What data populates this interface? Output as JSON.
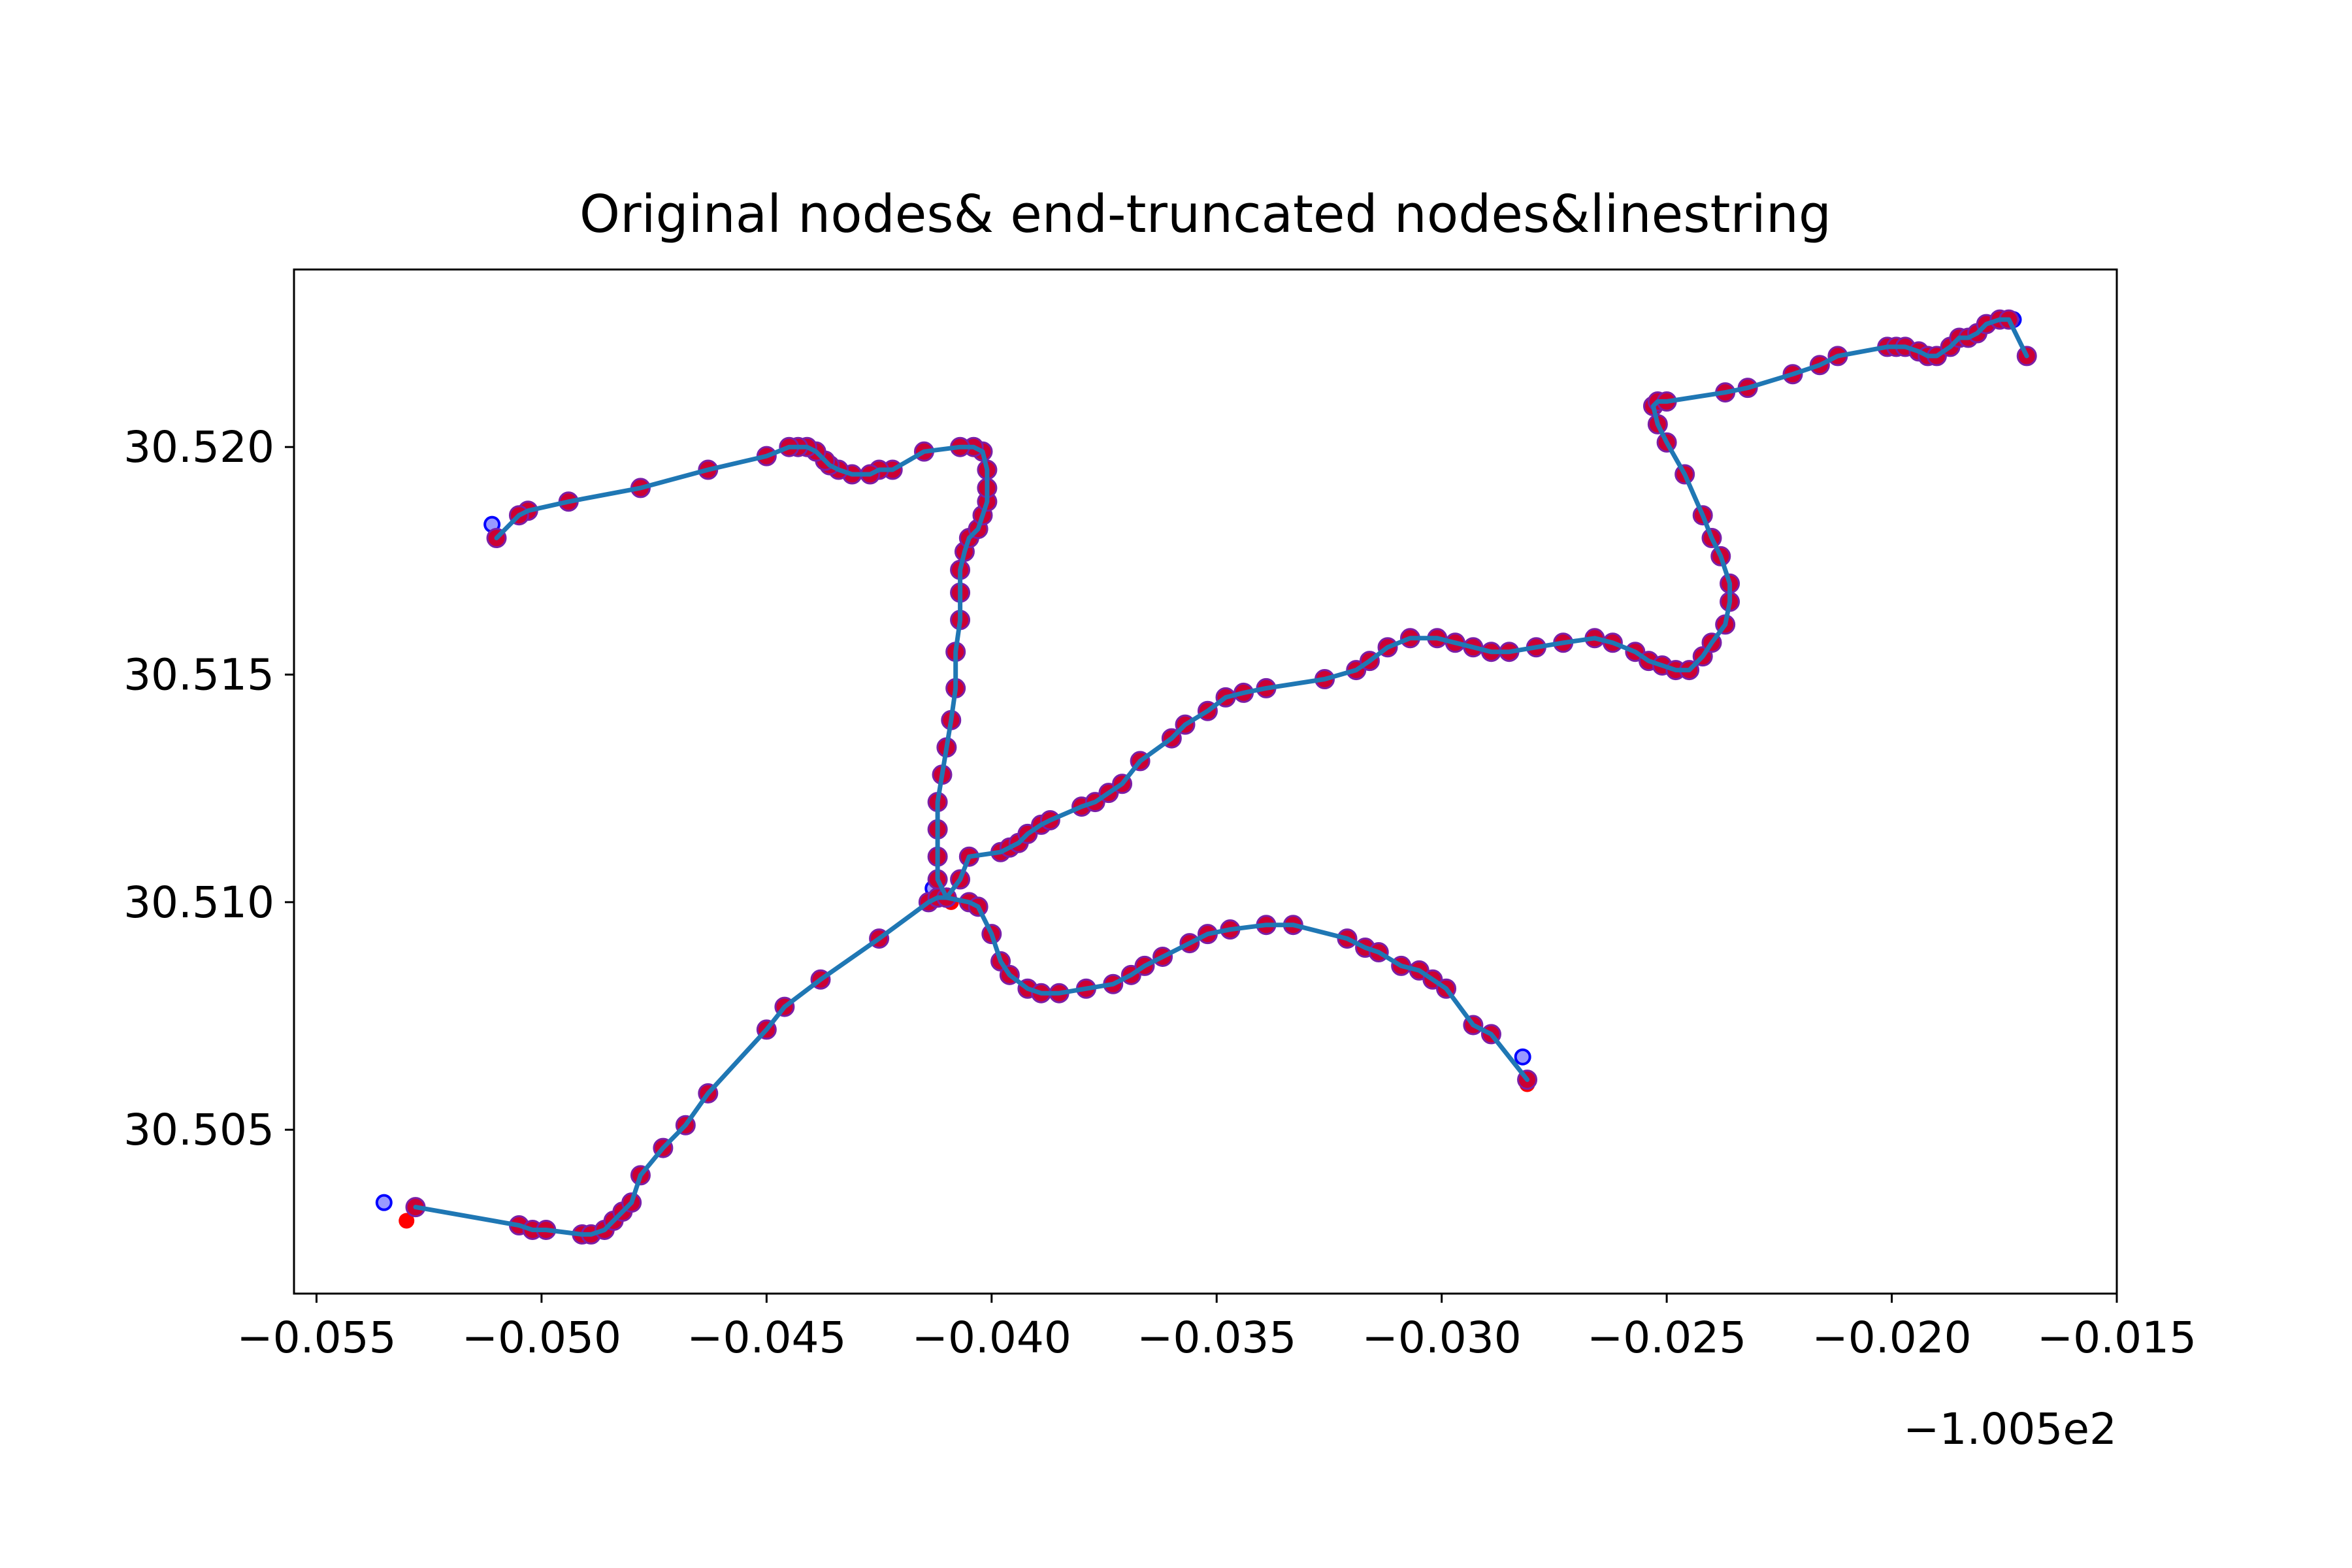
{
  "chart_data": {
    "type": "line",
    "title": "Original nodes& end-truncated nodes&linestring",
    "xlabel": "",
    "ylabel": "",
    "x_offset_label": "−1.005e2",
    "x_offset": -100.5,
    "xlim": [
      -0.0555,
      -0.015
    ],
    "ylim": [
      30.5014,
      30.5239
    ],
    "x_ticks": [
      -0.055,
      -0.05,
      -0.045,
      -0.04,
      -0.035,
      -0.03,
      -0.025,
      -0.02,
      -0.015
    ],
    "x_tick_labels": [
      "−0.055",
      "−0.050",
      "−0.045",
      "−0.040",
      "−0.035",
      "−0.030",
      "−0.025",
      "−0.020",
      "−0.015"
    ],
    "y_ticks": [
      30.505,
      30.51,
      30.515,
      30.52
    ],
    "y_tick_labels": [
      "30.505",
      "30.510",
      "30.515",
      "30.520"
    ],
    "grid": false,
    "colors": {
      "line": "#1f77b4",
      "original_nodes": "#ff0000",
      "truncated_nodes": "#0000ff"
    },
    "series": [
      {
        "points": [
          [
            -0.0528,
            30.5033
          ],
          [
            -0.0505,
            30.5029
          ],
          [
            -0.0502,
            30.5028
          ],
          [
            -0.0499,
            30.5028
          ],
          [
            -0.0491,
            30.5027
          ],
          [
            -0.0489,
            30.5027
          ],
          [
            -0.0486,
            30.5028
          ],
          [
            -0.0484,
            30.503
          ],
          [
            -0.0482,
            30.5032
          ],
          [
            -0.048,
            30.5034
          ],
          [
            -0.0478,
            30.504
          ],
          [
            -0.0473,
            30.5046
          ],
          [
            -0.0468,
            30.5051
          ],
          [
            -0.0463,
            30.5058
          ],
          [
            -0.045,
            30.5072
          ],
          [
            -0.0446,
            30.5077
          ],
          [
            -0.0438,
            30.5083
          ],
          [
            -0.0425,
            30.5092
          ],
          [
            -0.0414,
            30.51
          ],
          [
            -0.0412,
            30.5101
          ],
          [
            -0.041,
            30.5101
          ]
        ]
      },
      {
        "points": [
          [
            -0.041,
            30.5101
          ],
          [
            -0.0412,
            30.5105
          ],
          [
            -0.0412,
            30.511
          ],
          [
            -0.0412,
            30.5116
          ],
          [
            -0.0412,
            30.5122
          ],
          [
            -0.0411,
            30.5128
          ],
          [
            -0.041,
            30.5134
          ],
          [
            -0.0409,
            30.514
          ],
          [
            -0.0408,
            30.5147
          ],
          [
            -0.0408,
            30.5155
          ],
          [
            -0.0407,
            30.5162
          ],
          [
            -0.0407,
            30.5168
          ],
          [
            -0.0407,
            30.5173
          ],
          [
            -0.0406,
            30.5177
          ],
          [
            -0.0405,
            30.518
          ],
          [
            -0.0403,
            30.5182
          ],
          [
            -0.0402,
            30.5185
          ],
          [
            -0.0401,
            30.5188
          ],
          [
            -0.0401,
            30.5191
          ],
          [
            -0.0401,
            30.5195
          ],
          [
            -0.0402,
            30.5199
          ],
          [
            -0.0404,
            30.52
          ],
          [
            -0.0407,
            30.52
          ],
          [
            -0.0415,
            30.5199
          ],
          [
            -0.0422,
            30.5195
          ],
          [
            -0.0425,
            30.5195
          ],
          [
            -0.0427,
            30.5194
          ],
          [
            -0.0431,
            30.5194
          ],
          [
            -0.0434,
            30.5195
          ],
          [
            -0.0436,
            30.5196
          ],
          [
            -0.0437,
            30.5197
          ],
          [
            -0.0439,
            30.5199
          ],
          [
            -0.0441,
            30.52
          ],
          [
            -0.0443,
            30.52
          ],
          [
            -0.0445,
            30.52
          ],
          [
            -0.045,
            30.5198
          ],
          [
            -0.0463,
            30.5195
          ],
          [
            -0.0478,
            30.5191
          ],
          [
            -0.0494,
            30.5188
          ],
          [
            -0.0503,
            30.5186
          ],
          [
            -0.0505,
            30.5185
          ],
          [
            -0.051,
            30.518
          ]
        ]
      },
      {
        "points": [
          [
            -0.041,
            30.5101
          ],
          [
            -0.0407,
            30.5105
          ],
          [
            -0.0405,
            30.511
          ],
          [
            -0.0398,
            30.5111
          ],
          [
            -0.0396,
            30.5112
          ],
          [
            -0.0394,
            30.5113
          ],
          [
            -0.0392,
            30.5115
          ],
          [
            -0.0389,
            30.5117
          ],
          [
            -0.0387,
            30.5118
          ],
          [
            -0.038,
            30.5121
          ],
          [
            -0.0377,
            30.5122
          ],
          [
            -0.0374,
            30.5124
          ],
          [
            -0.0371,
            30.5126
          ],
          [
            -0.0367,
            30.5131
          ],
          [
            -0.036,
            30.5136
          ],
          [
            -0.0357,
            30.5139
          ],
          [
            -0.0352,
            30.5142
          ],
          [
            -0.0348,
            30.5145
          ],
          [
            -0.0344,
            30.5146
          ],
          [
            -0.0339,
            30.5147
          ],
          [
            -0.0326,
            30.5149
          ],
          [
            -0.0319,
            30.5151
          ],
          [
            -0.0316,
            30.5153
          ],
          [
            -0.0312,
            30.5156
          ],
          [
            -0.0307,
            30.5158
          ],
          [
            -0.0301,
            30.5158
          ],
          [
            -0.0297,
            30.5157
          ],
          [
            -0.0293,
            30.5156
          ],
          [
            -0.0289,
            30.5155
          ],
          [
            -0.0285,
            30.5155
          ],
          [
            -0.0279,
            30.5156
          ],
          [
            -0.0273,
            30.5157
          ],
          [
            -0.0266,
            30.5158
          ],
          [
            -0.0262,
            30.5157
          ],
          [
            -0.0257,
            30.5155
          ],
          [
            -0.0254,
            30.5153
          ],
          [
            -0.0251,
            30.5152
          ],
          [
            -0.0248,
            30.5151
          ],
          [
            -0.0245,
            30.5151
          ],
          [
            -0.0242,
            30.5154
          ],
          [
            -0.024,
            30.5157
          ],
          [
            -0.0237,
            30.5161
          ],
          [
            -0.0236,
            30.5166
          ],
          [
            -0.0236,
            30.517
          ],
          [
            -0.0238,
            30.5176
          ],
          [
            -0.024,
            30.518
          ],
          [
            -0.0242,
            30.5185
          ],
          [
            -0.0246,
            30.5194
          ],
          [
            -0.025,
            30.5201
          ],
          [
            -0.0252,
            30.5205
          ],
          [
            -0.0253,
            30.5209
          ],
          [
            -0.0252,
            30.521
          ],
          [
            -0.025,
            30.521
          ],
          [
            -0.0237,
            30.5212
          ],
          [
            -0.0232,
            30.5213
          ],
          [
            -0.0222,
            30.5216
          ],
          [
            -0.0216,
            30.5218
          ],
          [
            -0.0212,
            30.522
          ],
          [
            -0.0201,
            30.5222
          ],
          [
            -0.0199,
            30.5222
          ],
          [
            -0.0197,
            30.5222
          ],
          [
            -0.0194,
            30.5221
          ],
          [
            -0.0192,
            30.522
          ],
          [
            -0.019,
            30.522
          ],
          [
            -0.0187,
            30.5222
          ],
          [
            -0.0185,
            30.5224
          ],
          [
            -0.0183,
            30.5224
          ],
          [
            -0.0181,
            30.5225
          ],
          [
            -0.0179,
            30.5227
          ],
          [
            -0.0176,
            30.5228
          ],
          [
            -0.0174,
            30.5228
          ],
          [
            -0.017,
            30.522
          ]
        ]
      },
      {
        "points": [
          [
            -0.041,
            30.5101
          ],
          [
            -0.0405,
            30.51
          ],
          [
            -0.0403,
            30.5099
          ],
          [
            -0.04,
            30.5093
          ],
          [
            -0.0398,
            30.5087
          ],
          [
            -0.0396,
            30.5084
          ],
          [
            -0.0392,
            30.5081
          ],
          [
            -0.0389,
            30.508
          ],
          [
            -0.0385,
            30.508
          ],
          [
            -0.0379,
            30.5081
          ],
          [
            -0.0373,
            30.5082
          ],
          [
            -0.0369,
            30.5084
          ],
          [
            -0.0366,
            30.5086
          ],
          [
            -0.0362,
            30.5088
          ],
          [
            -0.0356,
            30.5091
          ],
          [
            -0.0352,
            30.5093
          ],
          [
            -0.0347,
            30.5094
          ],
          [
            -0.0339,
            30.5095
          ],
          [
            -0.0333,
            30.5095
          ],
          [
            -0.0321,
            30.5092
          ],
          [
            -0.0317,
            30.509
          ],
          [
            -0.0314,
            30.5089
          ],
          [
            -0.0309,
            30.5086
          ],
          [
            -0.0305,
            30.5085
          ],
          [
            -0.0302,
            30.5083
          ],
          [
            -0.0299,
            30.5081
          ],
          [
            -0.0293,
            30.5073
          ],
          [
            -0.0289,
            30.5071
          ],
          [
            -0.0281,
            30.5061
          ]
        ]
      }
    ],
    "original_endpoints": [
      [
        -0.053,
        30.503
      ],
      [
        -0.051,
        30.518
      ],
      [
        -0.017,
        30.522
      ],
      [
        -0.0281,
        30.506
      ],
      [
        -0.0409,
        30.51
      ]
    ],
    "truncated_endpoints": [
      [
        -0.0535,
        30.5034
      ],
      [
        -0.0511,
        30.5183
      ],
      [
        -0.0173,
        30.5228
      ],
      [
        -0.0282,
        30.5066
      ],
      [
        -0.0413,
        30.5103
      ]
    ]
  }
}
